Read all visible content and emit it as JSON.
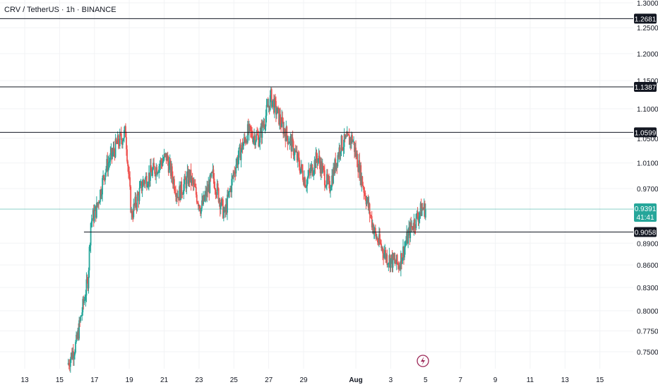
{
  "header": {
    "symbol_title": "CRV / TetherUS · 1h · BINANCE"
  },
  "colors": {
    "up": "#26a69a",
    "down": "#ef5350",
    "grid": "#f2f3f5",
    "axis_text": "#131722",
    "level_line": "#131722",
    "price_line": "#26a69a",
    "level_tag_bg": "#131722",
    "price_tag_bg": "#26a69a",
    "icon": "#9c2757"
  },
  "chart_data": {
    "type": "candlestick",
    "title": "CRV / TetherUS · 1h · BINANCE",
    "x_ticks": [
      "13",
      "15",
      "17",
      "19",
      "21",
      "23",
      "25",
      "27",
      "29",
      "Aug",
      "3",
      "5",
      "7",
      "9",
      "11",
      "13",
      "15"
    ],
    "y_ticks": [
      "1.3000",
      "1.2500",
      "1.2000",
      "1.1500",
      "1.1000",
      "1.0500",
      "1.0100",
      "0.9700",
      "0.8900",
      "0.8600",
      "0.8300",
      "0.8000",
      "0.7750",
      "0.7500"
    ],
    "y_scale": "log",
    "ylim": [
      0.73,
      1.31
    ],
    "grid": true,
    "horizontal_levels": [
      {
        "value": 1.2681,
        "label": "1.2681"
      },
      {
        "value": 1.1387,
        "label": "1.1387"
      },
      {
        "value": 1.0599,
        "label": "1.0599"
      },
      {
        "value": 0.9058,
        "label": "0.9058"
      }
    ],
    "last_price": {
      "value": 0.9391,
      "label": "0.9391",
      "countdown": "41:41"
    },
    "price_path": [
      [
        "Jul 15 12:00",
        0.735
      ],
      [
        "Jul 16 00:00",
        0.76
      ],
      [
        "Jul 16 08:00",
        0.8
      ],
      [
        "Jul 16 16:00",
        0.84
      ],
      [
        "Jul 16 20:00",
        0.92
      ],
      [
        "Jul 17 04:00",
        0.94
      ],
      [
        "Jul 17 16:00",
        1.0
      ],
      [
        "Jul 18 08:00",
        1.04
      ],
      [
        "Jul 18 20:00",
        1.06
      ],
      [
        "Jul 19 04:00",
        0.93
      ],
      [
        "Jul 19 20:00",
        0.98
      ],
      [
        "Jul 20 12:00",
        1.0
      ],
      [
        "Jul 21 04:00",
        1.02
      ],
      [
        "Jul 21 20:00",
        0.96
      ],
      [
        "Jul 22 12:00",
        0.99
      ],
      [
        "Jul 23 04:00",
        0.94
      ],
      [
        "Jul 23 20:00",
        0.99
      ],
      [
        "Jul 24 12:00",
        0.93
      ],
      [
        "Jul 25 04:00",
        1.01
      ],
      [
        "Jul 25 20:00",
        1.06
      ],
      [
        "Jul 26 12:00",
        1.05
      ],
      [
        "Jul 27 04:00",
        1.12
      ],
      [
        "Jul 27 20:00",
        1.07
      ],
      [
        "Jul 28 12:00",
        1.03
      ],
      [
        "Jul 29 04:00",
        0.98
      ],
      [
        "Jul 29 20:00",
        1.02
      ],
      [
        "Jul 30 12:00",
        0.97
      ],
      [
        "Jul 31 04:00",
        1.04
      ],
      [
        "Jul 31 20:00",
        1.05
      ],
      [
        "Aug 1 12:00",
        0.97
      ],
      [
        "Aug 2 04:00",
        0.9
      ],
      [
        "Aug 2 20:00",
        0.87
      ],
      [
        "Aug 3 12:00",
        0.86
      ],
      [
        "Aug 4 04:00",
        0.91
      ],
      [
        "Aug 4 20:00",
        0.94
      ],
      [
        "Aug 5 00:00",
        0.9391
      ]
    ]
  }
}
